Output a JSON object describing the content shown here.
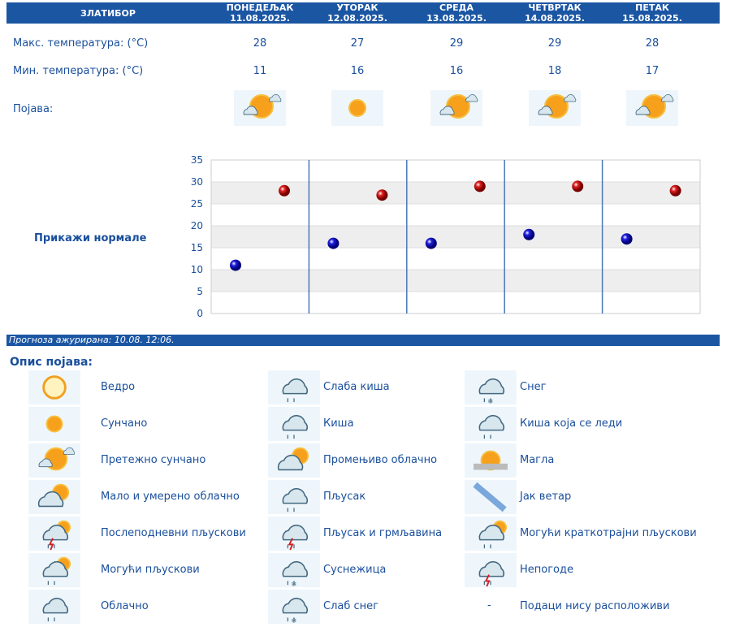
{
  "header": {
    "location": "ЗЛАТИБОР",
    "days": [
      {
        "day": "ПОНЕДЕЉАК",
        "date": "11.08.2025.",
        "max": "28",
        "min": "11",
        "icon": "mostly-sunny"
      },
      {
        "day": "УТОРАК",
        "date": "12.08.2025.",
        "max": "27",
        "min": "16",
        "icon": "sunny"
      },
      {
        "day": "СРЕДА",
        "date": "13.08.2025.",
        "max": "29",
        "min": "16",
        "icon": "mostly-sunny"
      },
      {
        "day": "ЧЕТВРТАК",
        "date": "14.08.2025.",
        "max": "29",
        "min": "18",
        "icon": "mostly-sunny"
      },
      {
        "day": "ПЕТАК",
        "date": "15.08.2025.",
        "max": "28",
        "min": "17",
        "icon": "mostly-sunny"
      }
    ]
  },
  "rows": {
    "max_label": "Макс. температура: (°C)",
    "min_label": "Мин. температура: (°C)",
    "phenomenon_label": "Појава:"
  },
  "show_normals": "Прикажи нормале",
  "chart_data": {
    "type": "scatter",
    "ylim": [
      0,
      35
    ],
    "yticks": [
      "0",
      "5",
      "10",
      "15",
      "20",
      "25",
      "30",
      "35"
    ],
    "categories": [
      "11.08.2025.",
      "12.08.2025.",
      "13.08.2025.",
      "14.08.2025.",
      "15.08.2025."
    ],
    "series": [
      {
        "values": [
          11,
          16,
          16,
          18,
          17
        ],
        "color": "#1010c0"
      },
      {
        "values": [
          28,
          27,
          29,
          29,
          28
        ],
        "color": "#d01010"
      }
    ],
    "grid": true
  },
  "updated": "Прогноза ажурирана:  10.08. 12:06.",
  "legend": {
    "title": "Опис појава:",
    "items": [
      [
        "Ведро",
        "clear-icon"
      ],
      [
        "Слаба киша",
        "light-rain-icon"
      ],
      [
        "Снег",
        "snow-icon"
      ],
      [
        "Сунчано",
        "sunny-icon"
      ],
      [
        "Киша",
        "rain-icon"
      ],
      [
        "Киша која се леди",
        "freezing-rain-icon"
      ],
      [
        "Претежно сунчано",
        "mostly-sunny-icon"
      ],
      [
        "Промењиво облачно",
        "variable-cloudy-icon"
      ],
      [
        "Магла",
        "fog-icon"
      ],
      [
        "Мало и умерено облачно",
        "partly-cloudy-icon"
      ],
      [
        "Пљусак",
        "shower-icon"
      ],
      [
        "Јак ветар",
        "strong-wind-icon"
      ],
      [
        "Послеподневни пљускови",
        "afternoon-showers-icon"
      ],
      [
        "Пљусак и грмљавина",
        "thunderstorm-icon"
      ],
      [
        "Могући краткотрајни пљускови",
        "possible-short-showers-icon"
      ],
      [
        "Могући пљускови",
        "possible-showers-icon"
      ],
      [
        "Суснежица",
        "sleet-icon"
      ],
      [
        "Непогоде",
        "storms-icon"
      ],
      [
        "Облачно",
        "cloudy-icon"
      ],
      [
        "Слаб снег",
        "light-snow-icon"
      ],
      [
        "Подаци нису расположиви",
        "no-data-icon"
      ]
    ],
    "no_data_symbol": "-"
  }
}
